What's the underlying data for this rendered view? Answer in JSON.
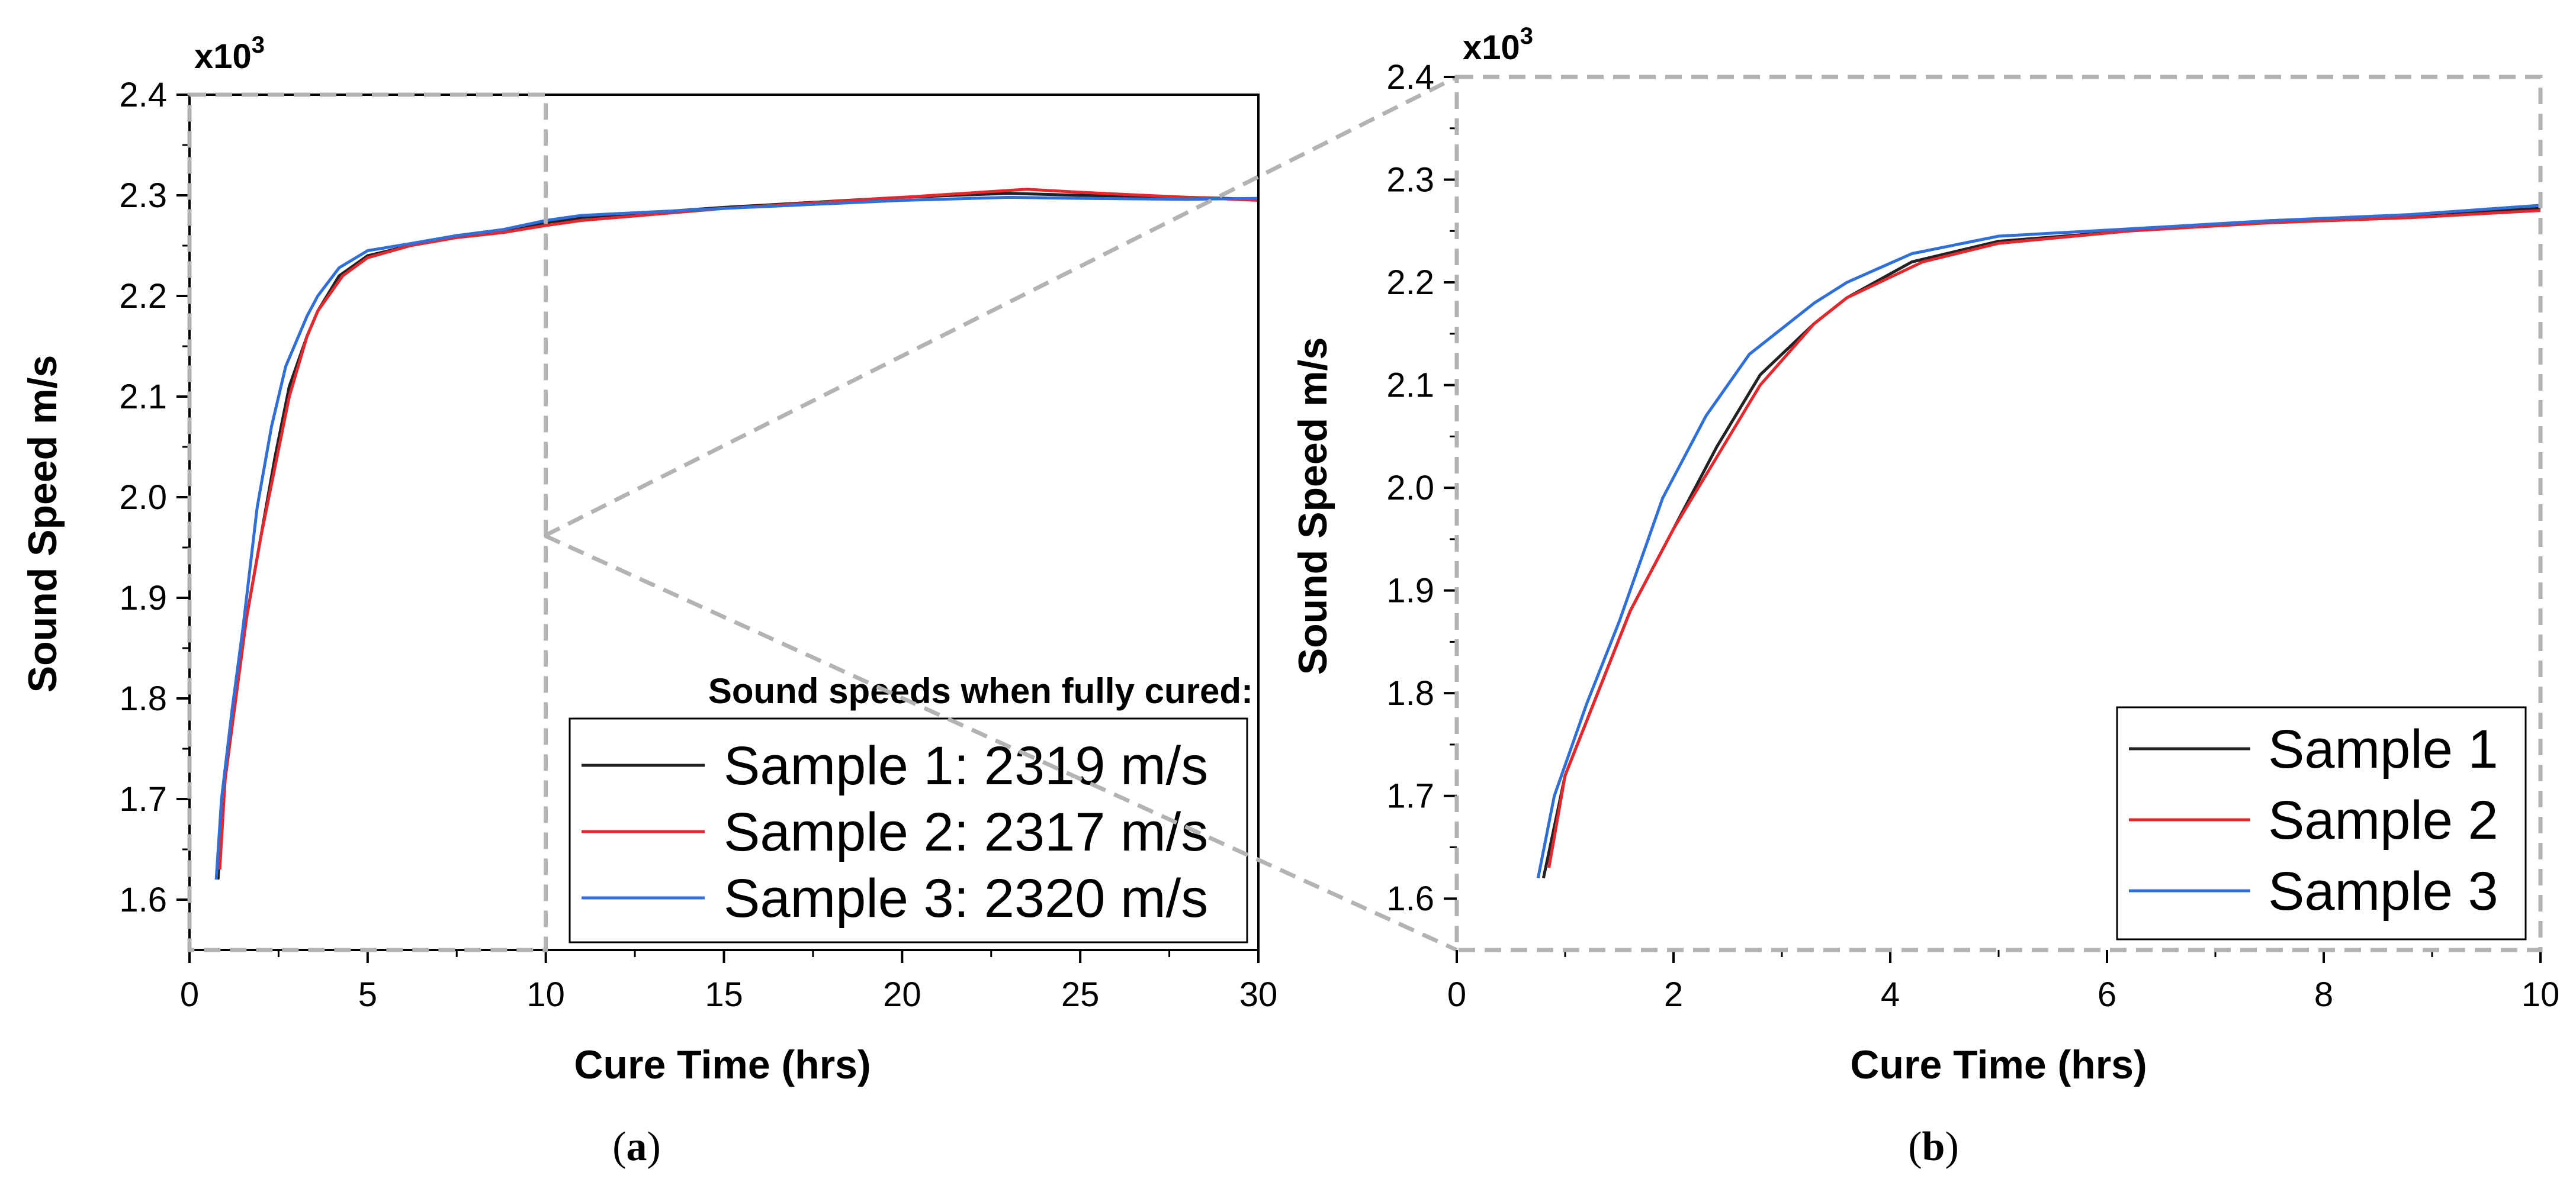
{
  "colors": {
    "sample1": "#222222",
    "sample2": "#e8262b",
    "sample3": "#2f6fdc",
    "zoom_guide": "#b3b3b3"
  },
  "panels": {
    "a": {
      "open": "(",
      "letter": "a",
      "close": ")"
    },
    "b": {
      "open": "(",
      "letter": "b",
      "close": ")"
    }
  },
  "chart_data": [
    {
      "id": "a",
      "type": "line",
      "xlabel": "Cure Time (hrs)",
      "ylabel": "Sound Speed m/s",
      "y_multiplier": {
        "base": "x10",
        "exponent": "3"
      },
      "xlim": [
        0,
        30
      ],
      "ylim": [
        1.55,
        2.4
      ],
      "xticks": [
        0,
        5,
        10,
        15,
        20,
        25,
        30
      ],
      "xtick_labels": [
        "0",
        "5",
        "10",
        "15",
        "20",
        "25",
        "30"
      ],
      "yticks": [
        1.6,
        1.7,
        1.8,
        1.9,
        2.0,
        2.1,
        2.2,
        2.3,
        2.4
      ],
      "ytick_labels": [
        "1.6",
        "1.7",
        "1.8",
        "1.9",
        "2.0",
        "2.1",
        "2.2",
        "2.3",
        "2.4"
      ],
      "zoom_window": {
        "xmin": 0,
        "xmax": 10,
        "ymin": 1.55,
        "ymax": 2.4
      },
      "legend_title": "Sound speeds when fully cured:",
      "legend_position": "bottom-right",
      "series": [
        {
          "name": "Sample 1: 2319 m/s",
          "color_key": "sample1",
          "x": [
            0.8,
            1.0,
            1.3,
            1.6,
            2.0,
            2.4,
            2.8,
            3.3,
            3.6,
            4.2,
            5.0,
            6.2,
            7.5,
            8.8,
            10.0,
            11.0,
            15.0,
            20.0,
            23.0,
            25.0,
            28.0,
            30.0
          ],
          "y": [
            1.62,
            1.72,
            1.8,
            1.88,
            1.96,
            2.04,
            2.11,
            2.16,
            2.185,
            2.22,
            2.24,
            2.25,
            2.26,
            2.265,
            2.272,
            2.278,
            2.288,
            2.298,
            2.302,
            2.3,
            2.298,
            2.296
          ]
        },
        {
          "name": "Sample 2: 2317 m/s",
          "color_key": "sample2",
          "x": [
            0.85,
            1.0,
            1.3,
            1.6,
            2.0,
            2.4,
            2.8,
            3.3,
            3.6,
            4.3,
            5.0,
            6.2,
            7.5,
            8.8,
            10.0,
            11.0,
            15.0,
            20.0,
            23.5,
            25.0,
            28.0,
            30.0
          ],
          "y": [
            1.63,
            1.72,
            1.8,
            1.88,
            1.96,
            2.03,
            2.1,
            2.16,
            2.185,
            2.22,
            2.238,
            2.25,
            2.258,
            2.263,
            2.27,
            2.275,
            2.287,
            2.298,
            2.306,
            2.303,
            2.298,
            2.295
          ]
        },
        {
          "name": "Sample 3: 2320 m/s",
          "color_key": "sample3",
          "x": [
            0.75,
            0.9,
            1.2,
            1.5,
            1.9,
            2.3,
            2.7,
            3.3,
            3.6,
            4.2,
            5.0,
            6.2,
            7.5,
            8.8,
            10.0,
            11.0,
            15.0,
            20.0,
            23.0,
            25.0,
            28.0,
            30.0
          ],
          "y": [
            1.62,
            1.7,
            1.79,
            1.87,
            1.99,
            2.07,
            2.13,
            2.18,
            2.2,
            2.228,
            2.245,
            2.252,
            2.26,
            2.266,
            2.275,
            2.28,
            2.287,
            2.295,
            2.298,
            2.297,
            2.296,
            2.297
          ]
        }
      ]
    },
    {
      "id": "b",
      "type": "line",
      "xlabel": "Cure Time (hrs)",
      "ylabel": "Sound Speed m/s",
      "y_multiplier": {
        "base": "x10",
        "exponent": "3"
      },
      "xlim": [
        0,
        10
      ],
      "ylim": [
        1.55,
        2.4
      ],
      "xticks": [
        0,
        2,
        4,
        6,
        8,
        10
      ],
      "xtick_labels": [
        "0",
        "2",
        "4",
        "6",
        "8",
        "10"
      ],
      "yticks": [
        1.6,
        1.7,
        1.8,
        1.9,
        2.0,
        2.1,
        2.2,
        2.3,
        2.4
      ],
      "ytick_labels": [
        "1.6",
        "1.7",
        "1.8",
        "1.9",
        "2.0",
        "2.1",
        "2.2",
        "2.3",
        "2.4"
      ],
      "legend_position": "bottom-right",
      "series": [
        {
          "name": "Sample 1",
          "color_key": "sample1",
          "x": [
            0.8,
            1.0,
            1.3,
            1.6,
            2.0,
            2.4,
            2.8,
            3.3,
            3.6,
            4.2,
            5.0,
            6.2,
            7.5,
            8.8,
            10.0
          ],
          "y": [
            1.62,
            1.72,
            1.8,
            1.88,
            1.96,
            2.04,
            2.11,
            2.16,
            2.185,
            2.22,
            2.24,
            2.25,
            2.26,
            2.265,
            2.272
          ]
        },
        {
          "name": "Sample 2",
          "color_key": "sample2",
          "x": [
            0.85,
            1.0,
            1.3,
            1.6,
            2.0,
            2.4,
            2.8,
            3.3,
            3.6,
            4.3,
            5.0,
            6.2,
            7.5,
            8.8,
            10.0
          ],
          "y": [
            1.63,
            1.72,
            1.8,
            1.88,
            1.96,
            2.03,
            2.1,
            2.16,
            2.185,
            2.22,
            2.238,
            2.25,
            2.258,
            2.263,
            2.27
          ]
        },
        {
          "name": "Sample 3",
          "color_key": "sample3",
          "x": [
            0.75,
            0.9,
            1.2,
            1.5,
            1.9,
            2.3,
            2.7,
            3.3,
            3.6,
            4.2,
            5.0,
            6.2,
            7.5,
            8.8,
            10.0
          ],
          "y": [
            1.62,
            1.7,
            1.79,
            1.87,
            1.99,
            2.07,
            2.13,
            2.18,
            2.2,
            2.228,
            2.245,
            2.252,
            2.26,
            2.266,
            2.275
          ]
        }
      ]
    }
  ]
}
